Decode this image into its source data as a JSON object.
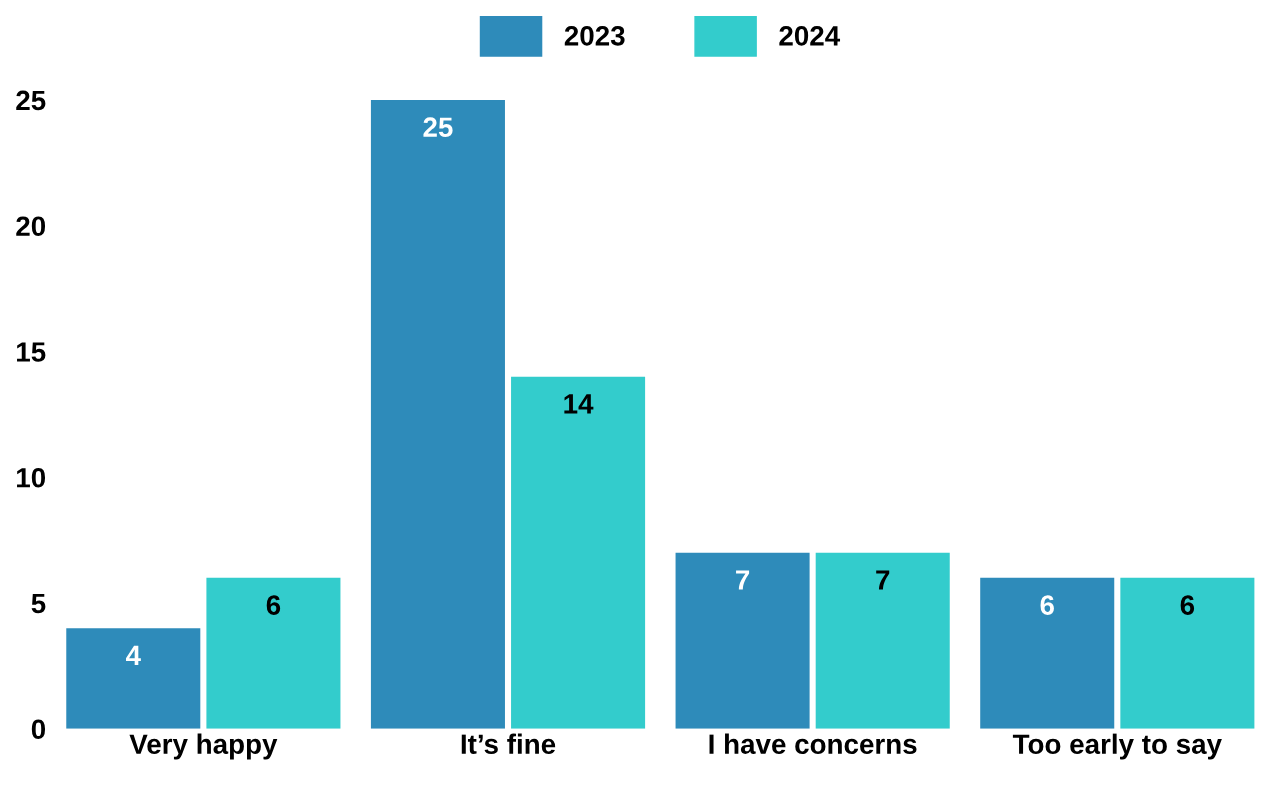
{
  "chart_data": {
    "type": "bar",
    "categories": [
      "Very happy",
      "It’s fine",
      "I have concerns",
      "Too early to say"
    ],
    "series": [
      {
        "name": "2023",
        "color": "#2e8bba",
        "values": [
          4,
          25,
          7,
          6
        ]
      },
      {
        "name": "2024",
        "color": "#33cccc",
        "values": [
          6,
          14,
          7,
          6
        ]
      }
    ],
    "ylim": [
      0,
      25
    ],
    "yticks": [
      0,
      5,
      10,
      15,
      20,
      25
    ],
    "data_labels": true,
    "grid": false,
    "legend": "top"
  }
}
